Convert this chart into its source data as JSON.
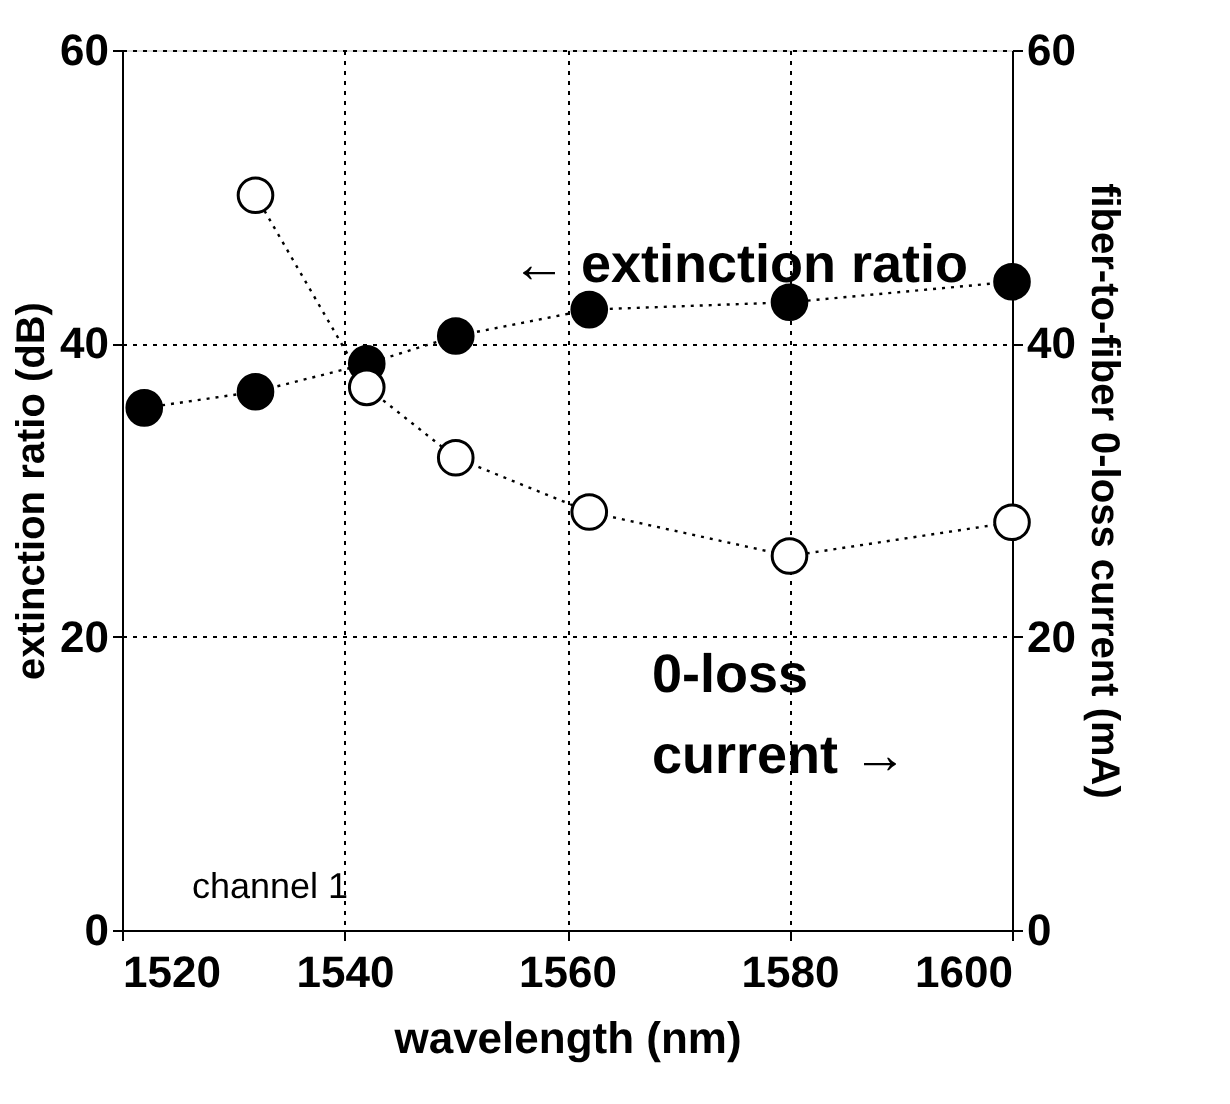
{
  "chart_data": {
    "type": "line",
    "xlabel": "wavelength (nm)",
    "ylabel": "extinction ratio (dB)",
    "y2label": "fiber-to-fiber 0-loss current (mA)",
    "xlim": [
      1520,
      1600
    ],
    "xticks": [
      1520,
      1540,
      1560,
      1580,
      1600
    ],
    "ylim": [
      0,
      60
    ],
    "yticks": [
      0,
      20,
      40,
      60
    ],
    "y2lim": [
      0,
      60
    ],
    "y2ticks": [
      0,
      20,
      40,
      60
    ],
    "grid": true,
    "marker": "circle",
    "line_style": "dotted",
    "series": [
      {
        "color": "#000000",
        "x": [
          1522,
          1532,
          1542,
          1550,
          1562,
          1580,
          1600
        ],
        "values": [
          35.6,
          36.7,
          38.6,
          40.5,
          42.3,
          42.8,
          44.2
        ]
      },
      {
        "color": "#ffffff",
        "axis": "y2",
        "x": [
          1532,
          1542,
          1550,
          1562,
          1580,
          1600
        ],
        "values": [
          50.1,
          37.0,
          32.2,
          28.5,
          25.5,
          27.8
        ]
      }
    ],
    "annotations": [
      "← extinction ratio",
      "0-loss\ncurrent →",
      "channel  1"
    ]
  }
}
